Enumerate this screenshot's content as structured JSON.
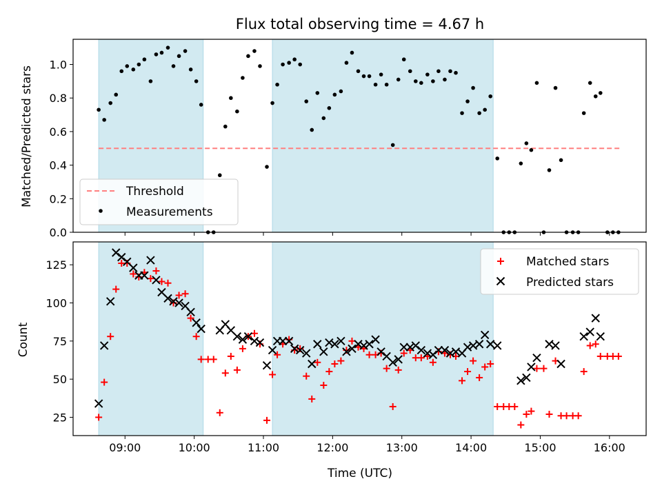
{
  "title": "Flux total observing time = 4.67 h",
  "colors": {
    "shade": "#add8e6",
    "threshold": "#ff7f7f",
    "measurement": "#000000",
    "matched": "#ff0000",
    "predicted": "#000000"
  },
  "chart_data": [
    {
      "type": "scatter",
      "ylabel": "Matched/Predicted stars",
      "ylim": [
        0,
        1.15
      ],
      "xlim": [
        8.25,
        16.53
      ],
      "x_unit": "hours UTC",
      "yticks": [
        "0.0",
        "0.2",
        "0.4",
        "0.6",
        "0.8",
        "1.0"
      ],
      "shaded_intervals": [
        [
          8.62,
          10.13
        ],
        [
          11.13,
          14.32
        ]
      ],
      "threshold": {
        "name": "Threshold",
        "value": 0.5,
        "x_range": [
          8.62,
          16.15
        ]
      },
      "legend": {
        "position": "lower-left",
        "entries": [
          "Threshold",
          "Measurements"
        ]
      },
      "series": [
        {
          "name": "Measurements",
          "x": [
            8.62,
            8.7,
            8.79,
            8.87,
            8.95,
            9.03,
            9.12,
            9.2,
            9.28,
            9.37,
            9.45,
            9.53,
            9.62,
            9.7,
            9.78,
            9.87,
            9.95,
            10.03,
            10.1,
            10.2,
            10.28,
            10.37,
            10.45,
            10.53,
            10.62,
            10.7,
            10.78,
            10.87,
            10.95,
            11.05,
            11.13,
            11.2,
            11.28,
            11.37,
            11.45,
            11.53,
            11.62,
            11.7,
            11.78,
            11.87,
            11.95,
            12.03,
            12.12,
            12.2,
            12.28,
            12.37,
            12.45,
            12.53,
            12.62,
            12.7,
            12.78,
            12.87,
            12.95,
            13.03,
            13.12,
            13.2,
            13.28,
            13.37,
            13.45,
            13.53,
            13.62,
            13.7,
            13.78,
            13.87,
            13.95,
            14.03,
            14.12,
            14.2,
            14.28,
            14.38,
            14.47,
            14.55,
            14.63,
            14.72,
            14.8,
            14.87,
            14.95,
            15.05,
            15.13,
            15.22,
            15.3,
            15.38,
            15.47,
            15.55,
            15.63,
            15.72,
            15.8,
            15.87,
            15.97,
            16.05,
            16.13
          ],
          "y": [
            0.73,
            0.67,
            0.77,
            0.82,
            0.96,
            0.99,
            0.97,
            1.0,
            1.03,
            0.9,
            1.06,
            1.07,
            1.1,
            0.99,
            1.05,
            1.08,
            0.97,
            0.9,
            0.76,
            0.0,
            0.0,
            0.34,
            0.63,
            0.8,
            0.72,
            0.92,
            1.05,
            1.08,
            0.99,
            0.39,
            0.77,
            0.88,
            1.0,
            1.01,
            1.03,
            1.0,
            0.78,
            0.61,
            0.83,
            0.68,
            0.74,
            0.82,
            0.84,
            1.01,
            1.07,
            0.96,
            0.93,
            0.93,
            0.88,
            0.94,
            0.88,
            0.52,
            0.91,
            1.03,
            0.96,
            0.9,
            0.89,
            0.94,
            0.9,
            0.96,
            0.91,
            0.96,
            0.95,
            0.71,
            0.78,
            0.86,
            0.71,
            0.73,
            0.81,
            0.44,
            0.0,
            0.0,
            0.0,
            0.41,
            0.53,
            0.49,
            0.89,
            0.0,
            0.37,
            0.86,
            0.43,
            0.0,
            0.0,
            0.0,
            0.71,
            0.89,
            0.81,
            0.83,
            0.0,
            0.0,
            0.0
          ]
        }
      ]
    },
    {
      "type": "scatter",
      "xlabel": "Time (UTC)",
      "ylabel": "Count",
      "ylim": [
        13,
        140
      ],
      "xlim": [
        8.25,
        16.53
      ],
      "xticks": [
        9,
        10,
        11,
        12,
        13,
        14,
        15,
        16
      ],
      "xticklabels": [
        "09:00",
        "10:00",
        "11:00",
        "12:00",
        "13:00",
        "14:00",
        "15:00",
        "16:00"
      ],
      "yticks": [
        25,
        50,
        75,
        100,
        125
      ],
      "yticklabels": [
        "25",
        "50",
        "75",
        "100",
        "125"
      ],
      "shaded_intervals": [
        [
          8.62,
          10.13
        ],
        [
          11.13,
          14.32
        ]
      ],
      "legend": {
        "position": "upper-right",
        "entries": [
          "Matched stars",
          "Predicted stars"
        ]
      },
      "series": [
        {
          "name": "Matched stars",
          "marker": "plus",
          "x": [
            8.62,
            8.7,
            8.79,
            8.87,
            8.95,
            9.03,
            9.12,
            9.2,
            9.28,
            9.37,
            9.45,
            9.53,
            9.62,
            9.7,
            9.78,
            9.87,
            9.95,
            10.03,
            10.1,
            10.2,
            10.28,
            10.37,
            10.45,
            10.53,
            10.62,
            10.7,
            10.78,
            10.87,
            10.95,
            11.05,
            11.13,
            11.2,
            11.28,
            11.37,
            11.45,
            11.53,
            11.62,
            11.7,
            11.78,
            11.87,
            11.95,
            12.03,
            12.12,
            12.2,
            12.28,
            12.37,
            12.45,
            12.53,
            12.62,
            12.7,
            12.78,
            12.87,
            12.95,
            13.03,
            13.12,
            13.2,
            13.28,
            13.37,
            13.45,
            13.53,
            13.62,
            13.7,
            13.78,
            13.87,
            13.95,
            14.03,
            14.12,
            14.2,
            14.28,
            14.38,
            14.47,
            14.55,
            14.63,
            14.72,
            14.8,
            14.87,
            14.95,
            15.05,
            15.13,
            15.22,
            15.3,
            15.38,
            15.47,
            15.55,
            15.63,
            15.72,
            15.8,
            15.87,
            15.97,
            16.05,
            16.13
          ],
          "y": [
            25,
            48,
            78,
            109,
            126,
            126,
            119,
            117,
            120,
            116,
            121,
            114,
            113,
            100,
            105,
            106,
            90,
            78,
            63,
            63,
            63,
            28,
            54,
            65,
            56,
            70,
            78,
            80,
            73,
            23,
            53,
            66,
            73,
            76,
            69,
            70,
            52,
            37,
            61,
            46,
            55,
            60,
            62,
            69,
            75,
            71,
            70,
            66,
            66,
            67,
            57,
            32,
            56,
            67,
            69,
            64,
            64,
            65,
            61,
            68,
            67,
            66,
            65,
            49,
            55,
            62,
            51,
            58,
            60,
            32,
            32,
            32,
            32,
            20,
            27,
            29,
            57,
            57,
            27,
            62,
            26,
            26,
            26,
            26,
            55,
            72,
            73,
            65,
            65,
            65,
            65
          ]
        },
        {
          "name": "Predicted stars",
          "marker": "x",
          "x": [
            8.62,
            8.7,
            8.79,
            8.87,
            8.95,
            9.03,
            9.12,
            9.2,
            9.28,
            9.37,
            9.45,
            9.53,
            9.62,
            9.7,
            9.78,
            9.87,
            9.95,
            10.03,
            10.1,
            10.37,
            10.45,
            10.53,
            10.62,
            10.7,
            10.78,
            10.87,
            10.95,
            11.05,
            11.13,
            11.2,
            11.28,
            11.37,
            11.45,
            11.53,
            11.62,
            11.7,
            11.78,
            11.87,
            11.95,
            12.03,
            12.12,
            12.2,
            12.28,
            12.37,
            12.45,
            12.53,
            12.62,
            12.7,
            12.78,
            12.87,
            12.95,
            13.03,
            13.12,
            13.2,
            13.28,
            13.37,
            13.45,
            13.53,
            13.62,
            13.7,
            13.78,
            13.87,
            13.95,
            14.03,
            14.12,
            14.2,
            14.28,
            14.38,
            14.72,
            14.8,
            14.87,
            14.95,
            15.13,
            15.22,
            15.3,
            15.63,
            15.72,
            15.8,
            15.87
          ],
          "y": [
            34,
            72,
            101,
            133,
            130,
            127,
            123,
            118,
            118,
            128,
            115,
            107,
            103,
            101,
            100,
            98,
            94,
            87,
            83,
            82,
            86,
            82,
            78,
            76,
            78,
            75,
            74,
            59,
            69,
            75,
            75,
            75,
            70,
            69,
            67,
            60,
            73,
            68,
            74,
            73,
            75,
            68,
            70,
            73,
            72,
            73,
            76,
            68,
            65,
            61,
            63,
            71,
            71,
            72,
            69,
            67,
            66,
            69,
            69,
            67,
            68,
            67,
            71,
            72,
            73,
            79,
            73,
            72,
            49,
            51,
            58,
            64,
            73,
            72,
            60,
            78,
            81,
            90,
            78
          ]
        }
      ]
    }
  ]
}
